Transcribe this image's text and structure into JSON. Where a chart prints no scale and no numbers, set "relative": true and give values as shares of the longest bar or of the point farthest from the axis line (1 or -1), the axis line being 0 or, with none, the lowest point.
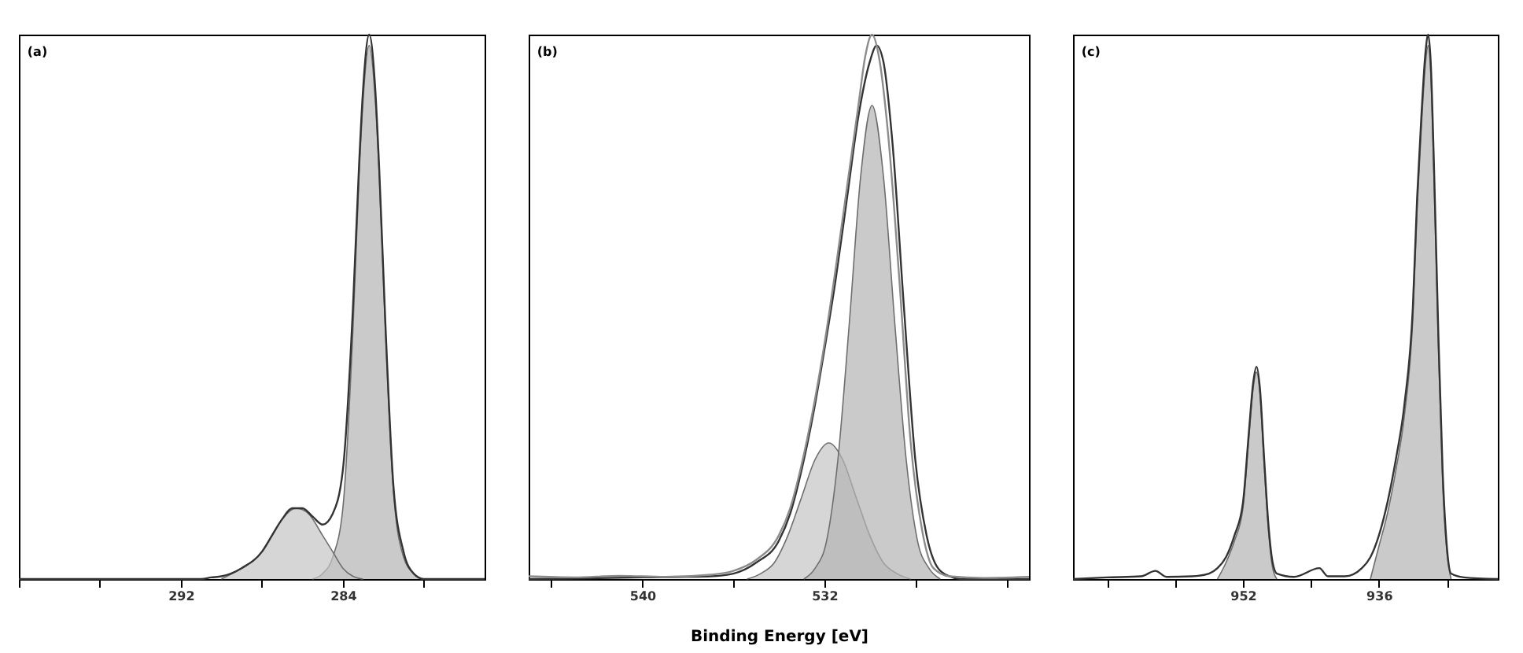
{
  "chart_data": [
    {
      "type": "line",
      "title": "(a)",
      "relative": true,
      "xlim": [
        300,
        277
      ],
      "xticks": [
        {
          "value": 300,
          "label": null
        },
        {
          "value": 296,
          "label": null
        },
        292,
        {
          "value": 288,
          "label": null
        },
        284,
        {
          "value": 280,
          "label": null
        }
      ],
      "series": [
        {
          "type": "area",
          "color": "#b4b4b4",
          "x": [
            285.5,
            285,
            284.5,
            284,
            283.5,
            283.2,
            283,
            282.7,
            282.4,
            282.2,
            281.9,
            281.5,
            281,
            280.5,
            280
          ],
          "values": [
            0,
            0.01,
            0.04,
            0.13,
            0.46,
            0.74,
            0.88,
            0.98,
            0.88,
            0.74,
            0.46,
            0.16,
            0.04,
            0.01,
            0
          ]
        },
        {
          "type": "area",
          "color": "#c4c4c4",
          "x": [
            290,
            289,
            288,
            287.5,
            287,
            286.3,
            285.7,
            285,
            284.5,
            284,
            283.5,
            283
          ],
          "values": [
            0,
            0.02,
            0.05,
            0.08,
            0.11,
            0.13,
            0.12,
            0.08,
            0.05,
            0.02,
            0.005,
            0
          ]
        },
        {
          "color": "#333333",
          "x": [
            300,
            295,
            291,
            290.5,
            290,
            289,
            288,
            287.5,
            287,
            286.5,
            286,
            285.5,
            285,
            284.5,
            284,
            283.5,
            283.2,
            283,
            282.7,
            282.4,
            282.2,
            281.9,
            281.5,
            281,
            280.5,
            280,
            277
          ],
          "values": [
            0,
            0,
            0,
            0.003,
            0.005,
            0.02,
            0.05,
            0.08,
            0.11,
            0.13,
            0.13,
            0.115,
            0.1,
            0.12,
            0.2,
            0.5,
            0.76,
            0.9,
            1,
            0.9,
            0.75,
            0.47,
            0.17,
            0.05,
            0.01,
            0,
            0
          ]
        }
      ]
    },
    {
      "type": "line",
      "title": "(b)",
      "xlabel": "Binding Energy [eV]",
      "relative": true,
      "xlim": [
        545,
        523
      ],
      "xticks": [
        {
          "value": 544,
          "label": null
        },
        540,
        {
          "value": 536,
          "label": null
        },
        532,
        {
          "value": 528,
          "label": null
        },
        {
          "value": 524,
          "label": null
        }
      ],
      "series": [
        {
          "type": "area",
          "color": "#c4c4c4",
          "x": [
            535.4,
            534.8,
            534.2,
            533.6,
            533,
            532.4,
            531.8,
            531.2,
            530.6,
            530,
            529.4,
            528.8,
            528.2
          ],
          "values": [
            0,
            0.01,
            0.03,
            0.08,
            0.15,
            0.22,
            0.25,
            0.22,
            0.15,
            0.08,
            0.03,
            0.01,
            0
          ]
        },
        {
          "type": "area",
          "color": "#b4b4b4",
          "x": [
            532.9,
            532.4,
            531.9,
            531.4,
            530.9,
            530.4,
            529.9,
            529.4,
            528.9,
            528.4,
            527.9,
            527.4,
            526.9
          ],
          "values": [
            0,
            0.02,
            0.07,
            0.22,
            0.47,
            0.74,
            0.87,
            0.74,
            0.47,
            0.22,
            0.07,
            0.02,
            0
          ]
        },
        {
          "color": "#333333",
          "x": [
            545,
            540,
            537,
            536,
            535,
            534,
            533.5,
            533,
            532.5,
            532,
            531.5,
            531,
            530.5,
            530,
            529.7,
            529.4,
            529,
            528.5,
            528,
            527.5,
            527,
            526.5,
            526,
            523
          ],
          "values": [
            0,
            0.003,
            0.005,
            0.01,
            0.03,
            0.07,
            0.12,
            0.2,
            0.3,
            0.42,
            0.55,
            0.7,
            0.85,
            0.95,
            0.98,
            0.95,
            0.8,
            0.5,
            0.22,
            0.08,
            0.02,
            0.005,
            0,
            0
          ]
        },
        {
          "color": "#8c8c8c",
          "x": [
            545,
            543,
            541,
            539,
            537,
            536,
            535,
            534,
            533.5,
            533,
            532.5,
            532,
            531.5,
            531,
            530.5,
            530.2,
            529.9,
            529.6,
            529.2,
            528.7,
            528.2,
            527.7,
            527.2,
            526.5,
            525,
            523
          ],
          "values": [
            0.005,
            0.003,
            0.006,
            0.004,
            0.008,
            0.015,
            0.035,
            0.08,
            0.13,
            0.21,
            0.31,
            0.43,
            0.57,
            0.72,
            0.87,
            0.96,
            1,
            0.96,
            0.82,
            0.55,
            0.25,
            0.09,
            0.02,
            0.005,
            0.002,
            0.004
          ]
        }
      ]
    },
    {
      "type": "line",
      "title": "(c)",
      "relative": true,
      "xlim": [
        972,
        922
      ],
      "xticks": [
        {
          "value": 968,
          "label": null
        },
        {
          "value": 960,
          "label": null
        },
        952,
        {
          "value": 944,
          "label": null
        },
        936,
        {
          "value": 928,
          "label": null
        }
      ],
      "series": [
        {
          "type": "area",
          "color": "#b4b4b4",
          "x": [
            955,
            954,
            953,
            952,
            951.3,
            950.8,
            950.4,
            950,
            949.5,
            949,
            948.5,
            948
          ],
          "values": [
            0,
            0.03,
            0.07,
            0.13,
            0.26,
            0.35,
            0.38,
            0.34,
            0.21,
            0.09,
            0.02,
            0
          ]
        },
        {
          "type": "area",
          "color": "#b4b4b4",
          "x": [
            937,
            936,
            935,
            934,
            933,
            932,
            931.5,
            931,
            930.5,
            930.2,
            929.9,
            929.5,
            929,
            928.5,
            928,
            927.5
          ],
          "values": [
            0,
            0.06,
            0.12,
            0.2,
            0.3,
            0.48,
            0.68,
            0.83,
            0.95,
            0.98,
            0.93,
            0.73,
            0.43,
            0.18,
            0.05,
            0
          ]
        },
        {
          "color": "#333333",
          "x": [
            972,
            968,
            964,
            962.3,
            961,
            958,
            956,
            955,
            954,
            953,
            952,
            951.3,
            950.8,
            950.4,
            950,
            949.5,
            949,
            948.5,
            948,
            946,
            943,
            942,
            940,
            938,
            937,
            936,
            935,
            934,
            933,
            932,
            931.5,
            931,
            930.5,
            930.2,
            929.9,
            929.5,
            929,
            928.5,
            928,
            927.5,
            926,
            922
          ],
          "values": [
            0,
            0.003,
            0.005,
            0.015,
            0.004,
            0.005,
            0.01,
            0.02,
            0.04,
            0.08,
            0.14,
            0.27,
            0.36,
            0.39,
            0.35,
            0.22,
            0.1,
            0.03,
            0.01,
            0.004,
            0.02,
            0.005,
            0.005,
            0.02,
            0.04,
            0.08,
            0.14,
            0.22,
            0.32,
            0.5,
            0.7,
            0.85,
            0.97,
            1,
            0.95,
            0.75,
            0.45,
            0.2,
            0.06,
            0.01,
            0.003,
            0
          ]
        }
      ]
    }
  ]
}
